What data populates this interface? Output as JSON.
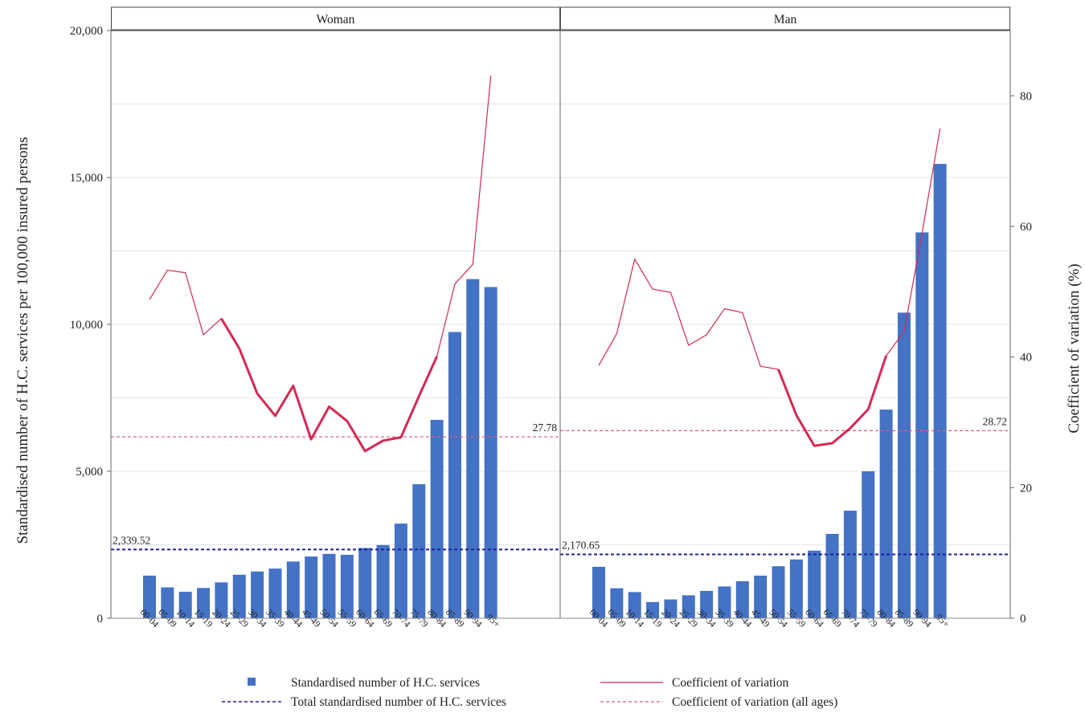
{
  "chart_data": {
    "type": "bar",
    "ylabel_left": "Standardised number of H.C. services per 100,000 insured persons",
    "ylabel_right": "Coefficient of variation (%)",
    "left_ticks": [
      "0",
      "5,000",
      "10,000",
      "15,000",
      "20,000"
    ],
    "left_tick_values": [
      0,
      5000,
      10000,
      15000,
      20000
    ],
    "right_ticks": [
      "0",
      "20",
      "40",
      "60",
      "80"
    ],
    "right_tick_values": [
      0,
      20,
      40,
      60,
      80
    ],
    "ylim_left": [
      0,
      20000
    ],
    "ylim_right": [
      0,
      90
    ],
    "categories": [
      "00-04",
      "05-09",
      "10-14",
      "15-19",
      "20-24",
      "25-29",
      "30-34",
      "35-39",
      "40-44",
      "45-49",
      "50-54",
      "55-59",
      "60-64",
      "65-69",
      "70-74",
      "75-79",
      "80-84",
      "85-89",
      "90-94",
      "95+"
    ],
    "panels": [
      {
        "name": "Woman",
        "bars": [
          1450,
          1050,
          900,
          1030,
          1220,
          1480,
          1590,
          1690,
          1930,
          2100,
          2190,
          2160,
          2390,
          2490,
          3220,
          4560,
          6750,
          9740,
          11540,
          11270
        ],
        "cv": [
          48.8,
          53.3,
          52.9,
          43.4,
          45.9,
          41.3,
          34.4,
          31.0,
          35.6,
          27.4,
          32.4,
          30.2,
          25.6,
          27.2,
          27.7,
          34.0,
          40.1,
          51.2,
          54.2,
          83.1
        ],
        "cv_thick_range": [
          4,
          16
        ],
        "total": 2339.52,
        "total_label": "2,339.52",
        "cv_all": 27.78,
        "cv_all_label": "27.78"
      },
      {
        "name": "Man",
        "bars": [
          1750,
          1020,
          890,
          550,
          640,
          780,
          930,
          1080,
          1260,
          1450,
          1770,
          2000,
          2300,
          2870,
          3660,
          5000,
          7100,
          10400,
          13130,
          15460
        ],
        "cv": [
          38.7,
          43.6,
          55.0,
          50.4,
          49.9,
          41.8,
          43.4,
          47.4,
          46.8,
          38.6,
          38.1,
          31.1,
          26.4,
          26.8,
          29.1,
          32.0,
          40.2,
          43.9,
          59.0,
          75.0
        ],
        "cv_thick_range": [
          10,
          16
        ],
        "total": 2170.65,
        "total_label": "2,170.65",
        "cv_all": 28.72,
        "cv_all_label": "28.72"
      }
    ],
    "legend": [
      "Standardised number of H.C. services",
      "Coefficient of variation",
      "Total standardised number of H.C. services",
      "Coefficient of variation (all ages)"
    ],
    "legend_placement": "bottom",
    "colors": {
      "bar": "#4472c4",
      "cv": "#d42a53",
      "total": "#1f1f9a",
      "cv_all": "#d95c7c",
      "grid": "#e6e6e6"
    },
    "grid": true
  }
}
